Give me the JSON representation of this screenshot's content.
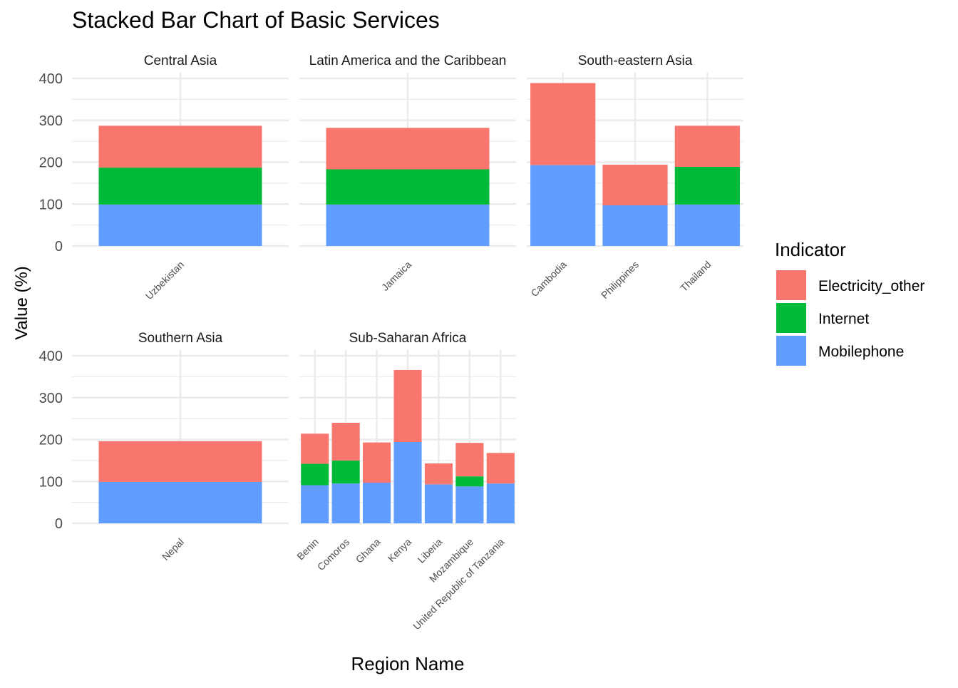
{
  "chart_data": {
    "type": "bar",
    "stacked": true,
    "title": "Stacked Bar Chart of Basic Services",
    "xlabel": "Region Name",
    "ylabel": "Value (%)",
    "ylim": [
      0,
      400
    ],
    "yticks": [
      0,
      100,
      200,
      300,
      400
    ],
    "legend": {
      "title": "Indicator",
      "position": "right",
      "entries": [
        {
          "name": "Electricity_other",
          "color": "#F8766D"
        },
        {
          "name": "Internet",
          "color": "#00BA38"
        },
        {
          "name": "Mobilephone",
          "color": "#619CFF"
        }
      ]
    },
    "facets": [
      {
        "name": "Central Asia",
        "categories": [
          "Uzbekistan"
        ],
        "series": [
          {
            "name": "Mobilephone",
            "values": [
              99
            ]
          },
          {
            "name": "Internet",
            "values": [
              88
            ]
          },
          {
            "name": "Electricity_other",
            "values": [
              100
            ]
          }
        ]
      },
      {
        "name": "Latin America and the Caribbean",
        "categories": [
          "Jamaica"
        ],
        "series": [
          {
            "name": "Mobilephone",
            "values": [
              99
            ]
          },
          {
            "name": "Internet",
            "values": [
              84
            ]
          },
          {
            "name": "Electricity_other",
            "values": [
              99
            ]
          }
        ]
      },
      {
        "name": "South-eastern Asia",
        "categories": [
          "Cambodia",
          "Philippines",
          "Thailand"
        ],
        "series": [
          {
            "name": "Mobilephone",
            "values": [
              193,
              97,
              99
            ]
          },
          {
            "name": "Internet",
            "values": [
              0,
              0,
              90
            ]
          },
          {
            "name": "Electricity_other",
            "values": [
              196,
              97,
              98
            ]
          }
        ]
      },
      {
        "name": "Southern Asia",
        "categories": [
          "Nepal"
        ],
        "series": [
          {
            "name": "Mobilephone",
            "values": [
              99
            ]
          },
          {
            "name": "Internet",
            "values": [
              0
            ]
          },
          {
            "name": "Electricity_other",
            "values": [
              97
            ]
          }
        ]
      },
      {
        "name": "Sub-Saharan Africa",
        "categories": [
          "Benin",
          "Comoros",
          "Ghana",
          "Kenya",
          "Liberia",
          "Mozambique",
          "United Republic of Tanzania"
        ],
        "series": [
          {
            "name": "Mobilephone",
            "values": [
              91,
              95,
              97,
              194,
              93,
              88,
              95
            ]
          },
          {
            "name": "Internet",
            "values": [
              51,
              55,
              0,
              0,
              0,
              24,
              0
            ]
          },
          {
            "name": "Electricity_other",
            "values": [
              72,
              90,
              96,
              172,
              50,
              80,
              73
            ]
          }
        ]
      }
    ]
  }
}
